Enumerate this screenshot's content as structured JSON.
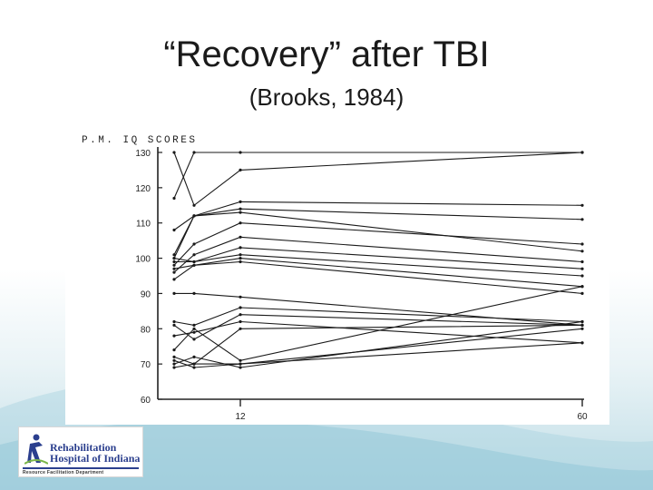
{
  "slide": {
    "title": "“Recovery” after TBI",
    "subtitle": "(Brooks, 1984)"
  },
  "logo": {
    "line1": "Rehabilitation",
    "line2": "Hospital of Indiana",
    "tagline": "Resource Facilitation Department",
    "color": "#2b3f8e",
    "accent": "#7ab648"
  },
  "chart_data": {
    "type": "line",
    "title": "P.M. IQ SCORES",
    "xlabel": "",
    "ylabel": "",
    "ylim": [
      60,
      130
    ],
    "yticks": [
      60,
      70,
      80,
      90,
      100,
      110,
      120,
      130
    ],
    "xticks": [
      {
        "value": 12,
        "label": "12"
      },
      {
        "value": 60,
        "label": "60"
      }
    ],
    "x": [
      1.5,
      4,
      12,
      60
    ],
    "grid": false,
    "series": [
      {
        "values": [
          130,
          115,
          125,
          130
        ]
      },
      {
        "values": [
          117,
          130,
          130,
          130
        ]
      },
      {
        "values": [
          101,
          112,
          116,
          115
        ]
      },
      {
        "values": [
          108,
          112,
          114,
          111
        ]
      },
      {
        "values": [
          100,
          112,
          113,
          102
        ]
      },
      {
        "values": [
          98,
          104,
          110,
          104
        ]
      },
      {
        "values": [
          96,
          101,
          106,
          99
        ]
      },
      {
        "values": [
          99,
          99,
          103,
          97
        ]
      },
      {
        "values": [
          100,
          99,
          101,
          95
        ]
      },
      {
        "values": [
          94,
          98,
          99,
          90
        ]
      },
      {
        "values": [
          97,
          98,
          100,
          92
        ]
      },
      {
        "values": [
          90,
          90,
          89,
          81
        ]
      },
      {
        "values": [
          82,
          81,
          86,
          82
        ]
      },
      {
        "values": [
          81,
          77,
          84,
          81
        ]
      },
      {
        "values": [
          78,
          79,
          82,
          76
        ]
      },
      {
        "values": [
          74,
          80,
          71,
          92
        ]
      },
      {
        "values": [
          72,
          70,
          70,
          80
        ]
      },
      {
        "values": [
          70,
          72,
          69,
          82
        ]
      },
      {
        "values": [
          69,
          70,
          80,
          81
        ]
      },
      {
        "values": [
          71,
          69,
          70,
          76
        ]
      }
    ]
  }
}
